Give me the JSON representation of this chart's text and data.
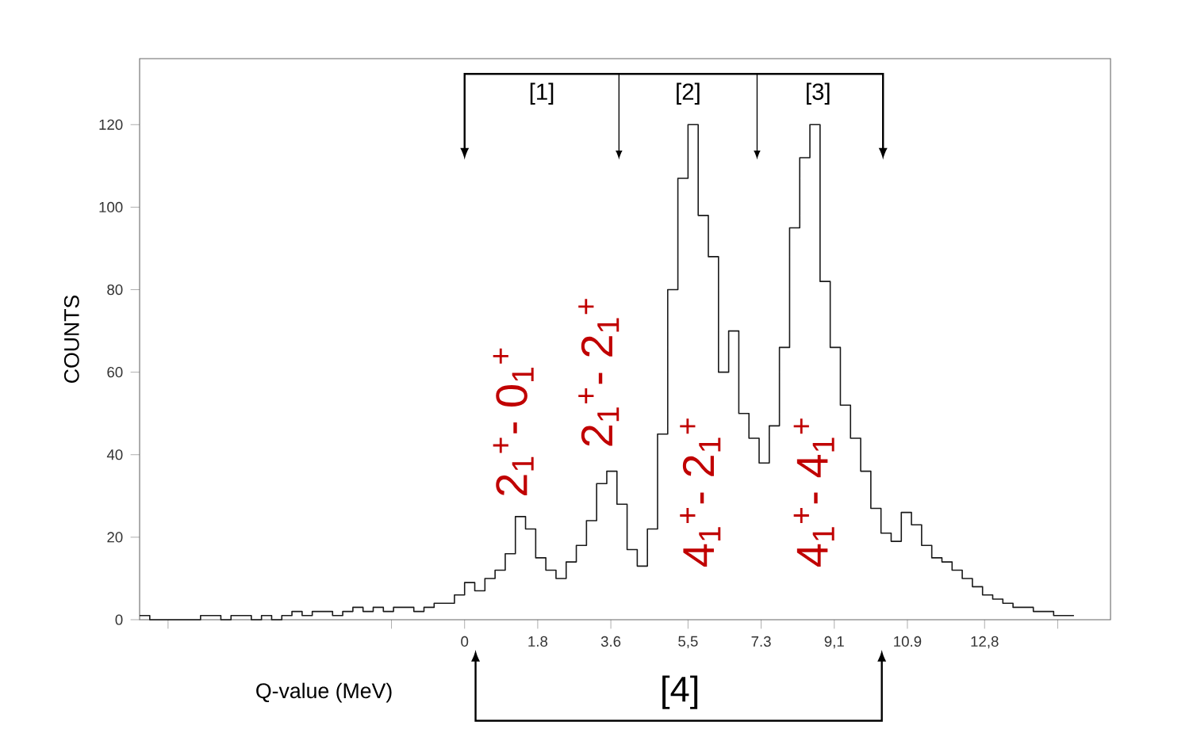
{
  "chart_data": {
    "type": "histogram",
    "xlabel": "Q-value (MeV)",
    "ylabel": "COUNTS",
    "color": "#1a1a1a",
    "bins": [
      -8,
      -7.75,
      -7.5,
      -7.25,
      -7,
      -6.75,
      -6.5,
      -6.25,
      -6,
      -5.75,
      -5.5,
      -5.25,
      -5,
      -4.75,
      -4.5,
      -4.25,
      -4,
      -3.75,
      -3.5,
      -3.25,
      -3,
      -2.75,
      -2.5,
      -2.25,
      -2,
      -1.75,
      -1.5,
      -1.25,
      -1,
      -0.75,
      -0.5,
      -0.25,
      0,
      0.25,
      0.5,
      0.75,
      1,
      1.25,
      1.5,
      1.75,
      2,
      2.25,
      2.5,
      2.75,
      3,
      3.25,
      3.5,
      3.75,
      4,
      4.25,
      4.5,
      4.75,
      5,
      5.25,
      5.5,
      5.75,
      6,
      6.25,
      6.5,
      6.75,
      7,
      7.25,
      7.5,
      7.75,
      8,
      8.25,
      8.5,
      8.75,
      9,
      9.25,
      9.5,
      9.75,
      10,
      10.25,
      10.5,
      10.75,
      11,
      11.25,
      11.5,
      11.75,
      12,
      12.25,
      12.5,
      12.75,
      13,
      13.25,
      13.5,
      13.75,
      14,
      14.25,
      14.5,
      14.75,
      15
    ],
    "values": [
      1,
      0,
      0,
      0,
      0,
      0,
      1,
      1,
      0,
      1,
      1,
      0,
      1,
      0,
      1,
      2,
      1,
      2,
      2,
      1,
      2,
      3,
      2,
      3,
      2,
      3,
      3,
      2,
      3,
      4,
      4,
      6,
      9,
      7,
      10,
      12,
      16,
      25,
      22,
      15,
      12,
      10,
      14,
      18,
      24,
      33,
      36,
      28,
      17,
      13,
      22,
      45,
      80,
      107,
      120,
      98,
      88,
      60,
      70,
      50,
      44,
      38,
      47,
      66,
      95,
      112,
      120,
      82,
      66,
      52,
      44,
      36,
      27,
      21,
      19,
      26,
      23,
      18,
      15,
      14,
      12,
      10,
      8,
      6,
      5,
      4,
      3,
      3,
      2,
      2,
      1,
      1
    ],
    "xlim": [
      -8,
      15.9
    ],
    "ylim": [
      0,
      136
    ],
    "xticks": [
      {
        "value": -7.3,
        "label": null
      },
      {
        "value": -1.8,
        "label": null
      },
      0,
      1.8,
      3.6,
      {
        "value": 5.5,
        "label": "5,5"
      },
      7.3,
      {
        "value": 9.1,
        "label": "9,1"
      },
      10.9,
      {
        "value": 12.8,
        "label": "12,8"
      },
      {
        "value": 14.6,
        "label": null
      }
    ],
    "yticks": [
      0,
      20,
      40,
      60,
      80,
      100,
      120
    ],
    "annotations": [
      "[1]",
      "[2]",
      "[3]",
      "[4]",
      "2$_{1}$$^{+}$- 0$_{1}$$^{+}$",
      "2$_{1}$$^{+}$- 2$_{1}$$^{+}$",
      "4$_{1}$$^{+}$- 2$_{1}$$^{+}$",
      "4$_{1}$$^{+}$- 4$_{1}$$^{+}$"
    ]
  }
}
